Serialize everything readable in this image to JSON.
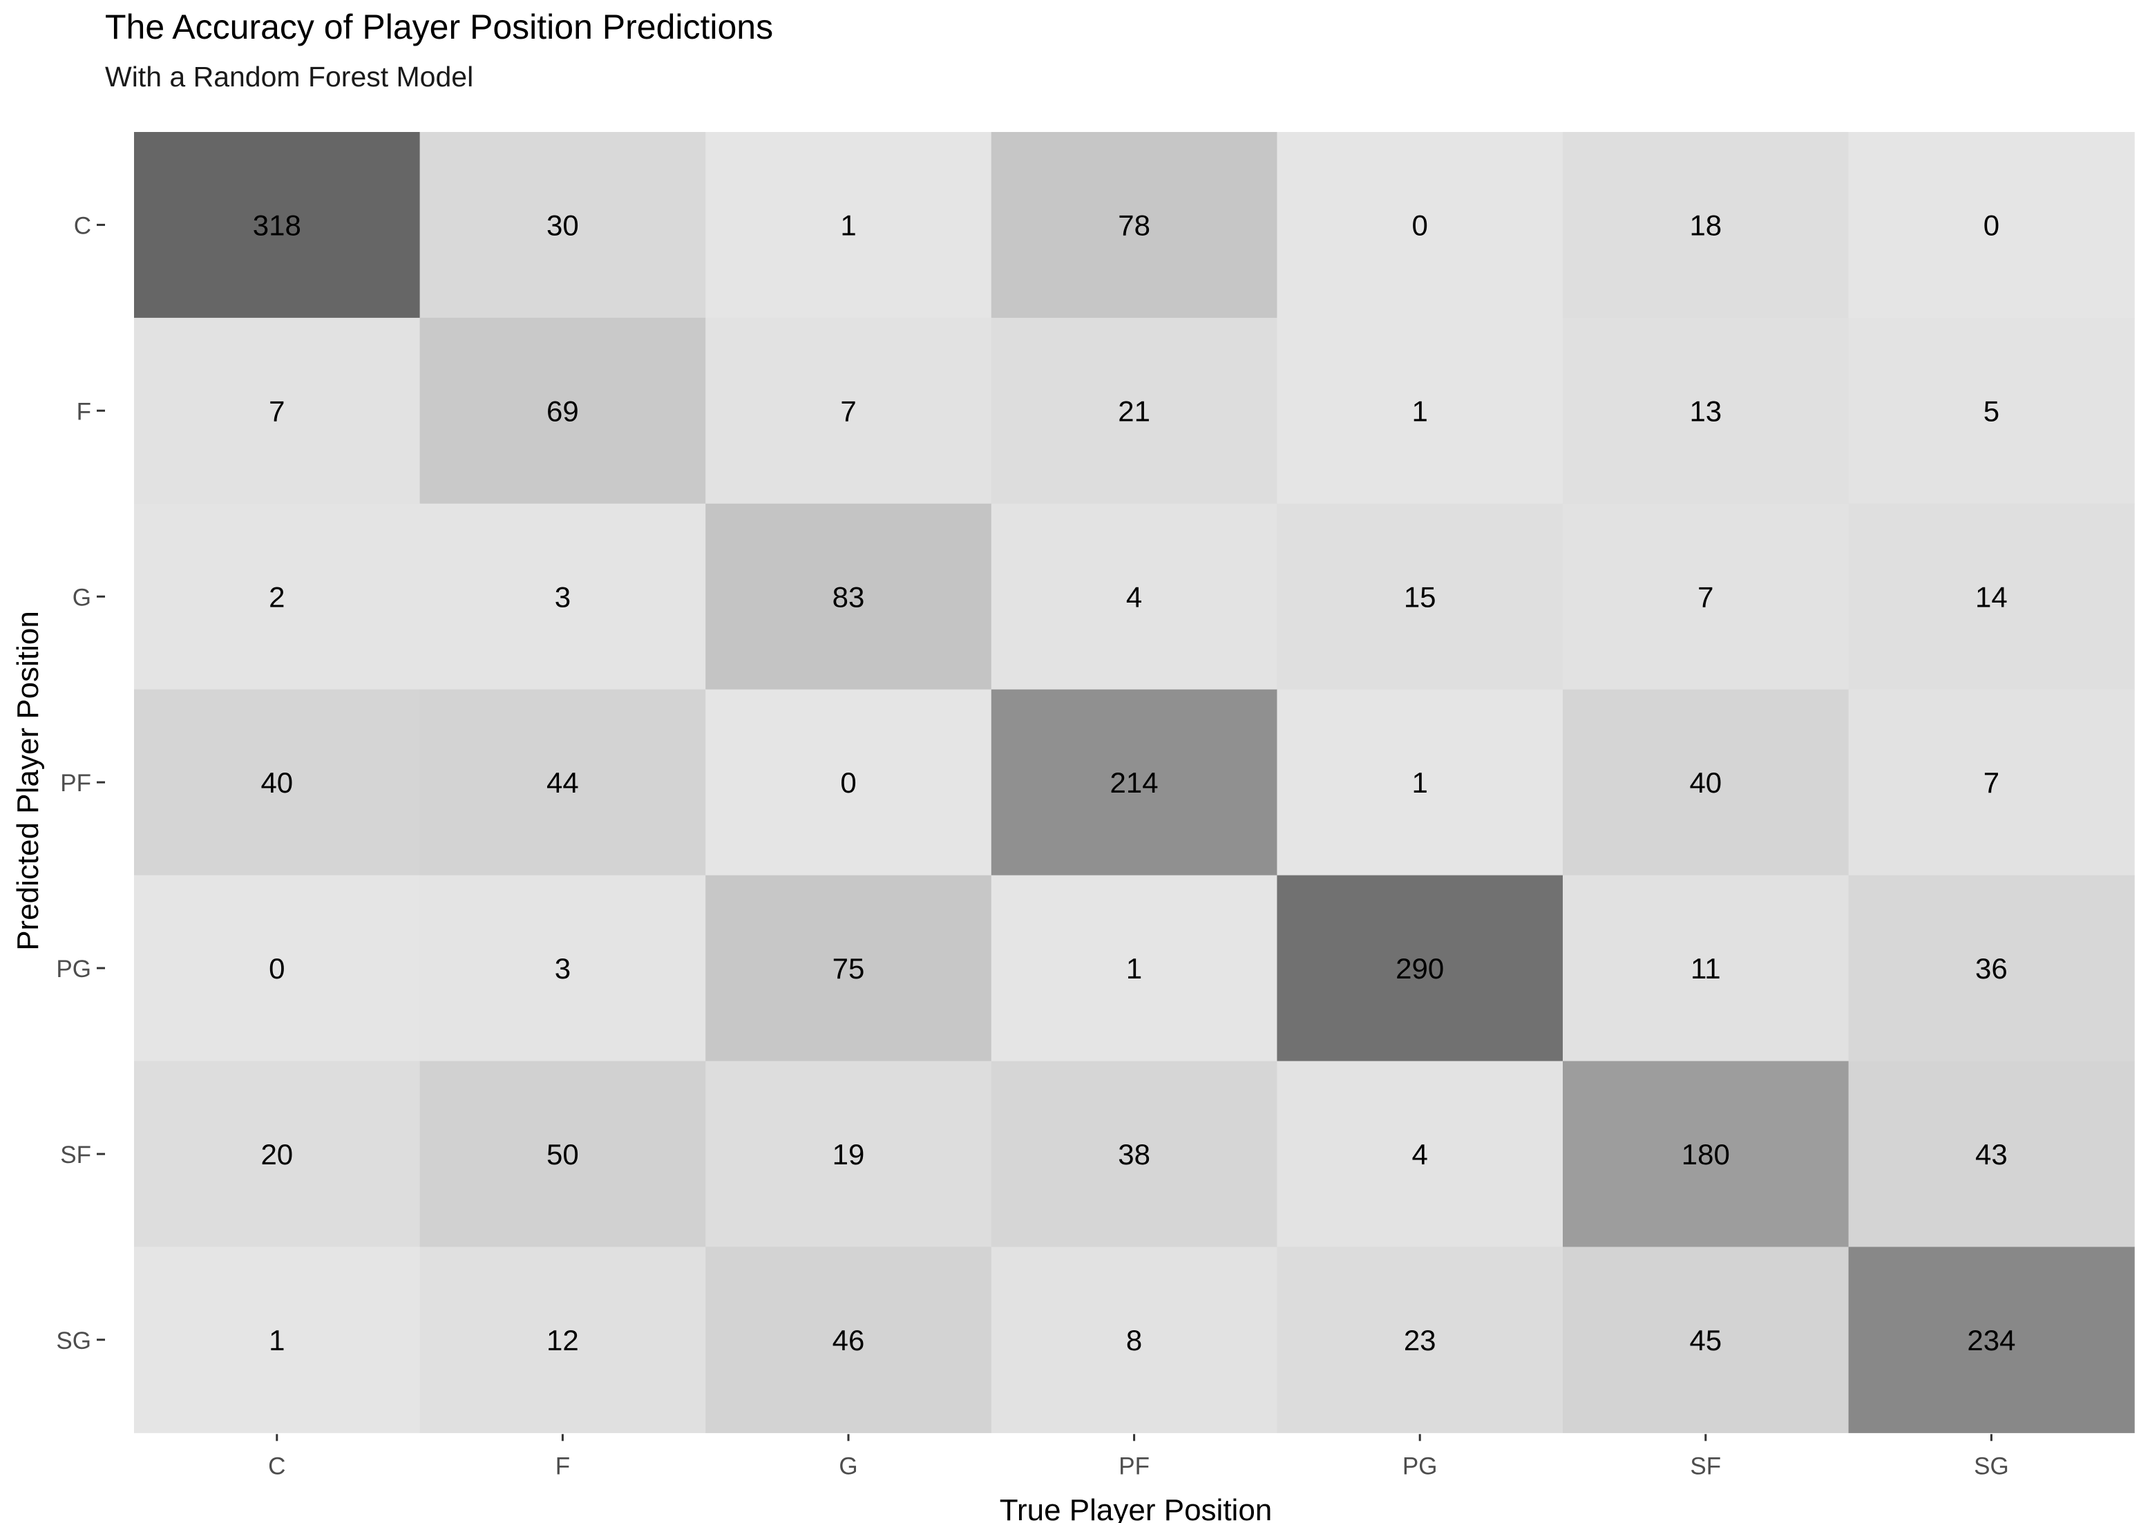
{
  "chart_data": {
    "type": "heatmap",
    "title": "The Accuracy of Player Position Predictions",
    "subtitle": "With a Random Forest Model",
    "xlabel": "True Player Position",
    "ylabel": "Predicted Player Position",
    "x_categories": [
      "C",
      "F",
      "G",
      "PF",
      "PG",
      "SF",
      "SG"
    ],
    "y_categories": [
      "C",
      "F",
      "G",
      "PF",
      "PG",
      "SF",
      "SG"
    ],
    "values": [
      [
        318,
        30,
        1,
        78,
        0,
        18,
        0
      ],
      [
        7,
        69,
        7,
        21,
        1,
        13,
        5
      ],
      [
        2,
        3,
        83,
        4,
        15,
        7,
        14
      ],
      [
        40,
        44,
        0,
        214,
        1,
        40,
        7
      ],
      [
        0,
        3,
        75,
        1,
        290,
        11,
        36
      ],
      [
        20,
        50,
        19,
        38,
        4,
        180,
        43
      ],
      [
        1,
        12,
        46,
        8,
        23,
        45,
        234
      ]
    ],
    "value_range": [
      0,
      318
    ],
    "color_low": "#e5e5e5",
    "color_high": "#666666",
    "legend": "none",
    "grid": false
  }
}
